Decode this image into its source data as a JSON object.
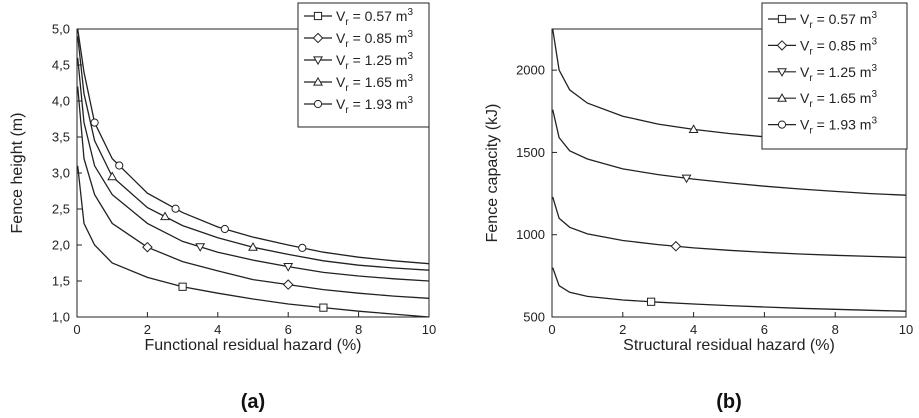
{
  "chart_data": [
    {
      "type": "line",
      "panel_label": "(a)",
      "xlabel": "Functional residual hazard (%)",
      "ylabel": "Fence height (m)",
      "xlim": [
        0,
        10
      ],
      "ylim": [
        1.0,
        5.0
      ],
      "xticks": [
        "0",
        "2",
        "4",
        "6",
        "8",
        "10"
      ],
      "yticks": [
        "1,0",
        "1,5",
        "2,0",
        "2,5",
        "3,0",
        "3,5",
        "4,0",
        "4,5",
        "5,0"
      ],
      "grid": false,
      "legend_position": "top-right",
      "series": [
        {
          "name": "V_r = 0.57 m^3",
          "label_pre": "V",
          "label_sub": "r",
          "label_mid": " = 0.57 m",
          "label_sup": "3",
          "marker": "square",
          "x": [
            0.02,
            0.2,
            0.5,
            1,
            2,
            3,
            4,
            5,
            6,
            7,
            8,
            9,
            10
          ],
          "values": [
            3.1,
            2.3,
            2.0,
            1.75,
            1.55,
            1.42,
            1.33,
            1.25,
            1.18,
            1.13,
            1.08,
            1.04,
            1.0
          ]
        },
        {
          "name": "V_r = 0.85 m^3",
          "label_pre": "V",
          "label_sub": "r",
          "label_mid": " = 0.85 m",
          "label_sup": "3",
          "marker": "diamond",
          "x": [
            0.02,
            0.2,
            0.5,
            1,
            2,
            3,
            4,
            5,
            6,
            7,
            8,
            9,
            10
          ],
          "values": [
            4.2,
            3.2,
            2.7,
            2.3,
            1.97,
            1.77,
            1.64,
            1.52,
            1.45,
            1.38,
            1.33,
            1.29,
            1.26
          ]
        },
        {
          "name": "V_r = 1.25 m^3",
          "label_pre": "V",
          "label_sub": "r",
          "label_mid": " = 1.25 m",
          "label_sup": "3",
          "marker": "triangle-down",
          "x": [
            0.02,
            0.2,
            0.5,
            1,
            2,
            3,
            4,
            5,
            6,
            7,
            8,
            9,
            10
          ],
          "values": [
            4.6,
            3.7,
            3.1,
            2.7,
            2.3,
            2.05,
            1.9,
            1.79,
            1.7,
            1.62,
            1.57,
            1.53,
            1.5
          ]
        },
        {
          "name": "V_r = 1.65 m^3",
          "label_pre": "V",
          "label_sub": "r",
          "label_mid": " = 1.65 m",
          "label_sup": "3",
          "marker": "triangle-up",
          "x": [
            0.02,
            0.2,
            0.5,
            1,
            2,
            3,
            4,
            5,
            6,
            7,
            8,
            9,
            10
          ],
          "values": [
            4.9,
            4.1,
            3.45,
            2.95,
            2.52,
            2.27,
            2.1,
            1.97,
            1.87,
            1.78,
            1.72,
            1.68,
            1.65
          ]
        },
        {
          "name": "V_r = 1.93 m^3",
          "label_pre": "V",
          "label_sub": "r",
          "label_mid": " = 1.93 m",
          "label_sup": "3",
          "marker": "circle",
          "x": [
            0.02,
            0.2,
            0.5,
            1,
            2,
            3,
            4,
            5,
            6,
            7,
            8,
            9,
            10
          ],
          "values": [
            5.0,
            4.4,
            3.7,
            3.2,
            2.72,
            2.45,
            2.25,
            2.11,
            2.0,
            1.9,
            1.83,
            1.78,
            1.74
          ]
        }
      ]
    },
    {
      "type": "line",
      "panel_label": "(b)",
      "xlabel": "Structural residual hazard (%)",
      "ylabel": "Fence capacity (kJ)",
      "xlim": [
        0,
        10
      ],
      "ylim": [
        500,
        2250
      ],
      "xticks": [
        "0",
        "2",
        "4",
        "6",
        "8",
        "10"
      ],
      "yticks": [
        "500",
        "1000",
        "1500",
        "2000"
      ],
      "grid": false,
      "legend_position": "top-right",
      "series": [
        {
          "name": "V_r = 0.57 m^3",
          "label_pre": "V",
          "label_sub": "r",
          "label_mid": " = 0.57 m",
          "label_sup": "3",
          "marker": "square",
          "x": [
            0.02,
            0.2,
            0.5,
            1,
            2,
            3,
            4,
            5,
            6,
            7,
            8,
            9,
            10
          ],
          "values": [
            800,
            690,
            650,
            625,
            603,
            590,
            579,
            569,
            561,
            553,
            547,
            541,
            535
          ]
        },
        {
          "name": "V_r = 0.85 m^3",
          "label_pre": "V",
          "label_sub": "r",
          "label_mid": " = 0.85 m",
          "label_sup": "3",
          "marker": "diamond",
          "x": [
            0.02,
            0.2,
            0.5,
            1,
            2,
            3,
            4,
            5,
            6,
            7,
            8,
            9,
            10
          ],
          "values": [
            1230,
            1100,
            1045,
            1005,
            965,
            940,
            920,
            905,
            893,
            883,
            875,
            868,
            862
          ]
        },
        {
          "name": "V_r = 1.25 m^3",
          "label_pre": "V",
          "label_sub": "r",
          "label_mid": " = 1.25 m",
          "label_sup": "3",
          "marker": "triangle-down",
          "x": [
            0.02,
            0.2,
            0.5,
            1,
            2,
            3,
            4,
            5,
            6,
            7,
            8,
            9,
            10
          ],
          "values": [
            1760,
            1590,
            1510,
            1460,
            1400,
            1365,
            1338,
            1315,
            1295,
            1278,
            1263,
            1250,
            1240
          ]
        },
        {
          "name": "V_r = 1.65 m^3",
          "label_pre": "V",
          "label_sub": "r",
          "label_mid": " = 1.65 m",
          "label_sup": "3",
          "marker": "triangle-up",
          "x": [
            0.02,
            0.2,
            0.5,
            1,
            2,
            3,
            4,
            5,
            6,
            7,
            8,
            9,
            10
          ],
          "values": [
            2250,
            2000,
            1880,
            1800,
            1720,
            1672,
            1640,
            1615,
            1595,
            1578,
            1563,
            1550,
            1540
          ]
        }
      ]
    }
  ]
}
